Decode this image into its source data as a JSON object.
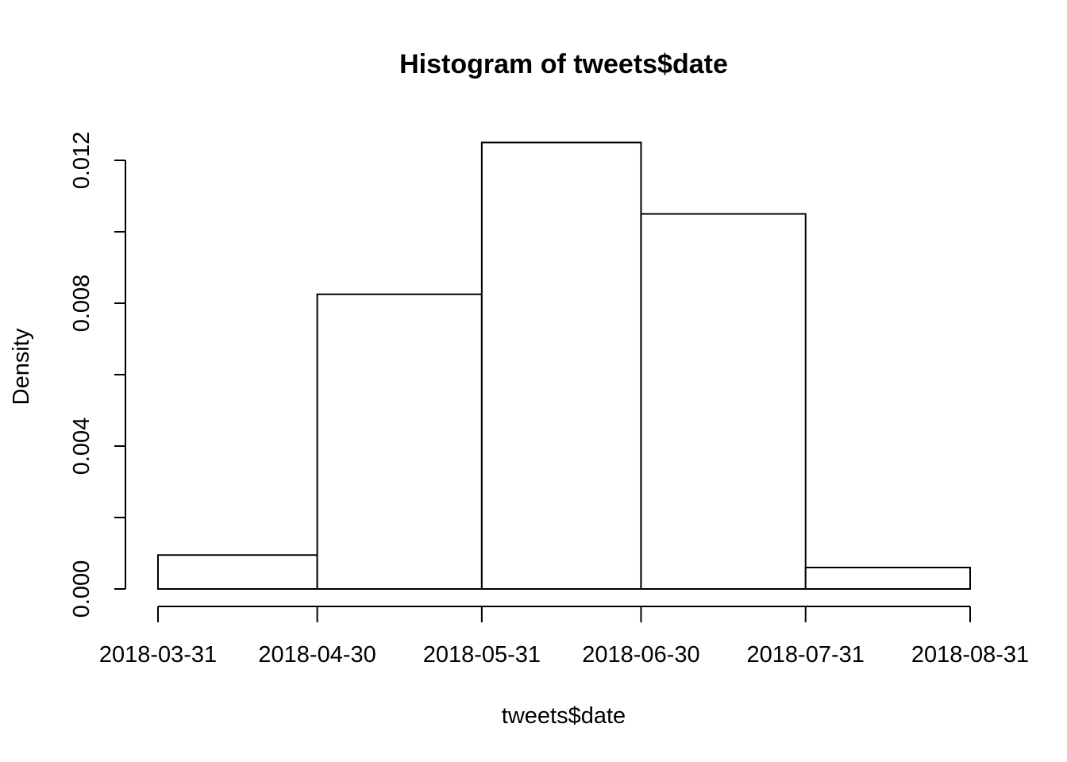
{
  "chart_data": {
    "type": "bar",
    "title": "Histogram of tweets$date",
    "xlabel": "tweets$date",
    "ylabel": "Density",
    "bins": [
      {
        "start": "2018-03-31",
        "end": "2018-04-30",
        "density": 0.00095
      },
      {
        "start": "2018-04-30",
        "end": "2018-05-31",
        "density": 0.00825
      },
      {
        "start": "2018-05-31",
        "end": "2018-06-30",
        "density": 0.0125
      },
      {
        "start": "2018-06-30",
        "end": "2018-07-31",
        "density": 0.0105
      },
      {
        "start": "2018-07-31",
        "end": "2018-08-31",
        "density": 0.0006
      }
    ],
    "x_ticks": [
      "2018-03-31",
      "2018-04-30",
      "2018-05-31",
      "2018-06-30",
      "2018-07-31",
      "2018-08-31"
    ],
    "y_ticks": [
      0,
      0.002,
      0.004,
      0.006,
      0.008,
      0.01,
      0.012
    ],
    "y_tick_labels": [
      "0.000",
      "",
      "0.004",
      "",
      "0.008",
      "",
      "0.012"
    ],
    "xlim": [
      "2018-03-31",
      "2018-08-31"
    ],
    "ylim": [
      0,
      0.012
    ],
    "grid": false,
    "legend": "none"
  }
}
